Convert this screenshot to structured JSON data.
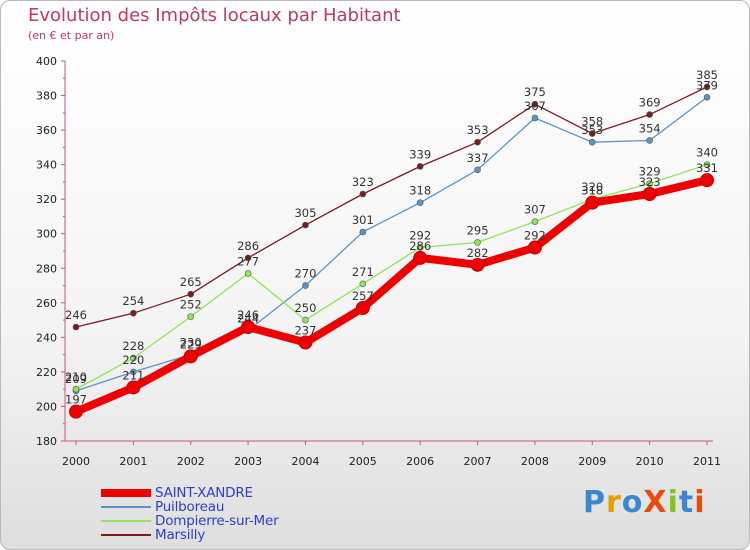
{
  "chart_data": {
    "type": "line",
    "title": "Evolution des Impôts locaux par Habitant",
    "subtitle": "(en € et par an)",
    "xlabel": "",
    "ylabel": "",
    "ylim": [
      180,
      400
    ],
    "yticks": [
      "180",
      "200",
      "220",
      "240",
      "260",
      "280",
      "300",
      "320",
      "340",
      "360",
      "380",
      "400"
    ],
    "categories": [
      "2000",
      "2001",
      "2002",
      "2003",
      "2004",
      "2005",
      "2006",
      "2007",
      "2008",
      "2009",
      "2010",
      "2011"
    ],
    "series": [
      {
        "name": "Marsilly",
        "color": "#7a1c22",
        "values": [
          246,
          254,
          265,
          286,
          305,
          323,
          339,
          353,
          375,
          358,
          369,
          385
        ]
      },
      {
        "name": "Puilboreau",
        "color": "#5b95c8",
        "values": [
          209,
          220,
          230,
          244,
          270,
          301,
          318,
          337,
          367,
          353,
          354,
          379
        ]
      },
      {
        "name": "Dompierre-sur-Mer",
        "color": "#8ee65a",
        "values": [
          210,
          228,
          252,
          277,
          250,
          271,
          292,
          295,
          307,
          320,
          329,
          340
        ]
      },
      {
        "name": "SAINT-XANDRE",
        "color": "#ee0000",
        "values": [
          197,
          211,
          229,
          246,
          237,
          257,
          286,
          282,
          292,
          318,
          323,
          331
        ]
      }
    ],
    "legend": [
      {
        "name": "SAINT-XANDRE",
        "color": "#ee0000"
      },
      {
        "name": "Puilboreau",
        "color": "#5b95c8"
      },
      {
        "name": "Dompierre-sur-Mer",
        "color": "#8ee65a"
      },
      {
        "name": "Marsilly",
        "color": "#7a1c22"
      }
    ],
    "legend_position": "bottom-left",
    "grid": false
  },
  "brand": {
    "text": "ProXiti"
  }
}
